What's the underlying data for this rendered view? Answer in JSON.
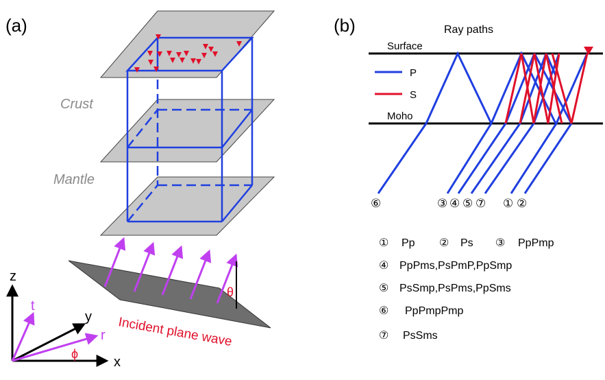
{
  "panel_a": {
    "label": "(a)",
    "layer_crust": "Crust",
    "layer_mantle": "Mantle",
    "wave_label": "Incident plane wave",
    "angle_theta": "θ",
    "axes": {
      "z": "z",
      "y": "y",
      "x": "x",
      "t": "t",
      "r": "r",
      "phi": "ϕ"
    }
  },
  "panel_b": {
    "label": "(b)",
    "title": "Ray paths",
    "surface_label": "Surface",
    "moho_label": "Moho",
    "legend": {
      "p": "P",
      "s": "S"
    },
    "ray_numbers": [
      "⑥",
      "③",
      "④",
      "⑤",
      "⑦",
      "①",
      "②"
    ],
    "phases": [
      {
        "num": "①",
        "name": "Pp"
      },
      {
        "num": "②",
        "name": "Ps"
      },
      {
        "num": "③",
        "name": "PpPmp"
      },
      {
        "num": "④",
        "name": "PpPms,PsPmP,PpSmp"
      },
      {
        "num": "⑤",
        "name": "PsSmp,PsPms,PpSms"
      },
      {
        "num": "⑥",
        "name": "PpPmpPmp"
      },
      {
        "num": "⑦",
        "name": "PsSms"
      }
    ]
  },
  "colors": {
    "p_wave": "#1f3fe0",
    "s_wave": "#e0102a",
    "station": "#e0102a",
    "arrow": "#c040f0",
    "plane": "#c8c8c8",
    "incident_plane": "#6e6e6e",
    "layer_text": "#8a8a8a"
  }
}
